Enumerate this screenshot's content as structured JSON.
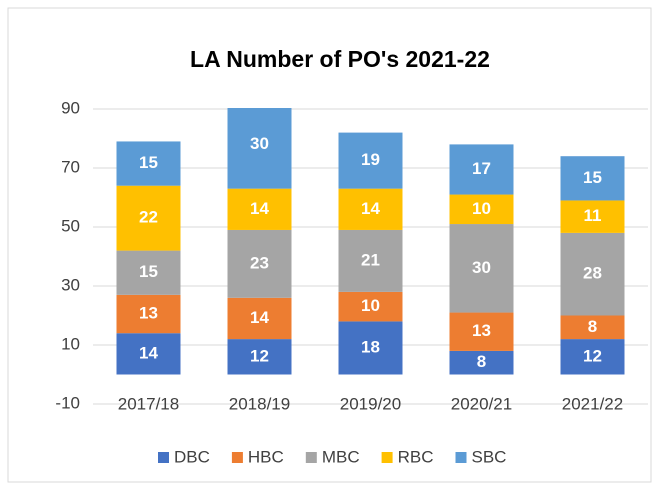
{
  "chart_data": {
    "type": "stacked_bar",
    "title": "LA Number of PO's 2021-22",
    "categories": [
      "2017/18",
      "2018/19",
      "2019/20",
      "2020/21",
      "2021/22"
    ],
    "series": [
      {
        "name": "DBC",
        "color": "#4472c4",
        "values": [
          14,
          12,
          18,
          8,
          12
        ]
      },
      {
        "name": "HBC",
        "color": "#ed7d31",
        "values": [
          13,
          14,
          10,
          13,
          8
        ]
      },
      {
        "name": "MBC",
        "color": "#a5a5a5",
        "values": [
          15,
          23,
          21,
          30,
          28
        ]
      },
      {
        "name": "RBC",
        "color": "#ffc000",
        "values": [
          22,
          14,
          14,
          10,
          11
        ]
      },
      {
        "name": "SBC",
        "color": "#5b9bd5",
        "values": [
          15,
          30,
          19,
          17,
          15
        ]
      }
    ],
    "ylim": [
      -10,
      90
    ],
    "yticks": [
      -10,
      10,
      30,
      50,
      70,
      90
    ],
    "grid": true,
    "legend": "bottom"
  }
}
